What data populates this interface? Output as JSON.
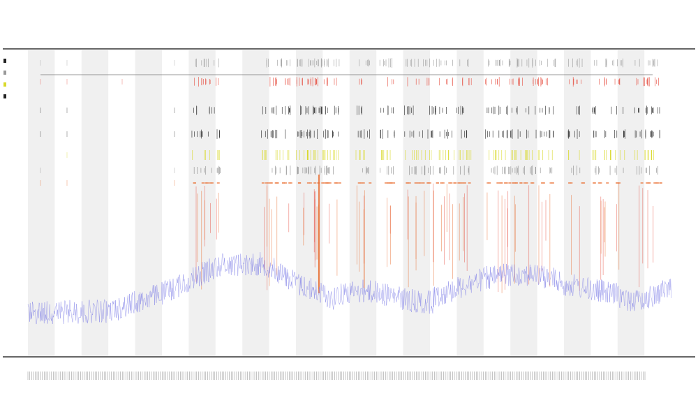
{
  "chart_data": {
    "type": "line",
    "title": "",
    "subtitle": "",
    "subtitle2": "",
    "xlabel": "",
    "ylabel": "",
    "grid": false,
    "bands": 12,
    "colors": {
      "line": "#7a7ae6",
      "orange": "#e8692a",
      "red": "#e64a3c",
      "yellow": "#d9d92a",
      "black": "#222222",
      "band": "#f0f0f0",
      "axis": "#333333"
    },
    "track_rows": [
      {
        "name": "",
        "color": "#999999"
      },
      {
        "name": "",
        "color": "#e64a3c"
      },
      {
        "name": "",
        "color": "#222222"
      },
      {
        "name": "",
        "color": "#222222"
      },
      {
        "name": "",
        "color": "#d9d92a"
      },
      {
        "name": "",
        "color": "#888888"
      },
      {
        "name": "",
        "color": "#e8692a"
      }
    ],
    "legend": [
      {
        "label": "",
        "color": "#222222"
      },
      {
        "label": "",
        "color": "#999999"
      },
      {
        "label": "",
        "color": "#d9d92a"
      },
      {
        "label": "",
        "color": "#222222"
      }
    ]
  }
}
